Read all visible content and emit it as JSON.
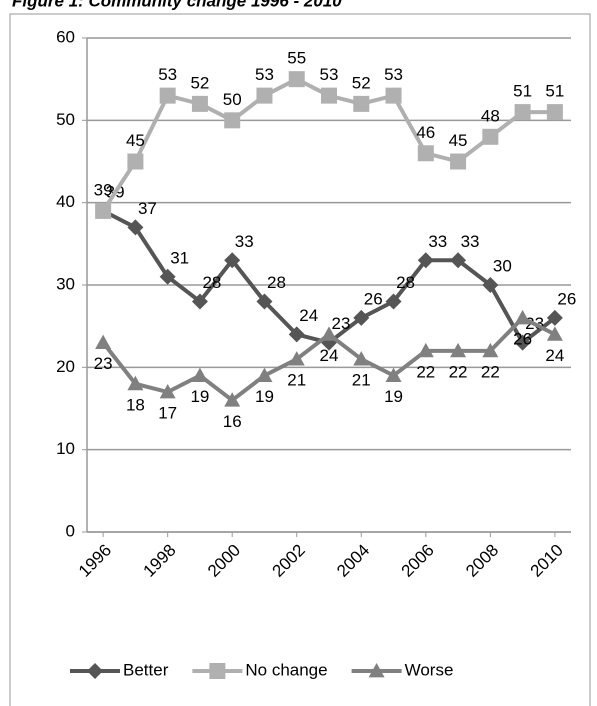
{
  "chart_data": {
    "type": "line",
    "title": "Figure 1: Community change 1996 - 2010",
    "x": [
      1996,
      1997,
      1998,
      1999,
      2000,
      2001,
      2002,
      2003,
      2004,
      2005,
      2006,
      2007,
      2008,
      2009,
      2010
    ],
    "xlim": [
      1995.5,
      2010.5
    ],
    "xticks": [
      1996,
      1998,
      2000,
      2002,
      2004,
      2006,
      2008,
      2010
    ],
    "ylim": [
      0,
      60
    ],
    "yticks": [
      0,
      10,
      20,
      30,
      40,
      50,
      60
    ],
    "grid": true,
    "legend": "bottom",
    "series": [
      {
        "name": "Better",
        "color": "#555555",
        "marker": "diamond",
        "values": [
          39,
          37,
          31,
          28,
          33,
          28,
          24,
          23,
          26,
          28,
          33,
          33,
          30,
          23,
          26
        ]
      },
      {
        "name": "No change",
        "color": "#b0b0b0",
        "marker": "square",
        "values": [
          39,
          45,
          53,
          52,
          50,
          53,
          55,
          53,
          52,
          53,
          46,
          45,
          48,
          51,
          51
        ]
      },
      {
        "name": "Worse",
        "color": "#808080",
        "marker": "triangle",
        "values": [
          23,
          18,
          17,
          19,
          16,
          19,
          21,
          24,
          21,
          19,
          22,
          22,
          22,
          26,
          24
        ]
      }
    ]
  }
}
